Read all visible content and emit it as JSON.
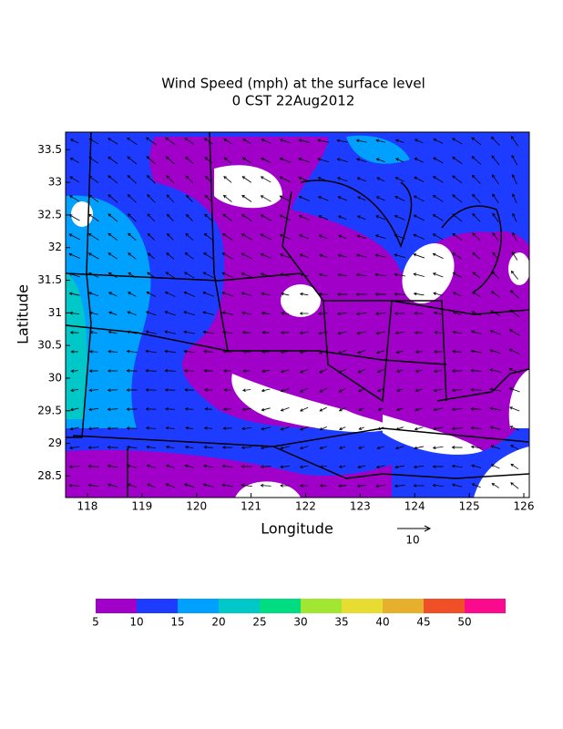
{
  "chart_data": {
    "type": "contour",
    "title": "Wind Speed (mph) at the surface level",
    "subtitle": "0 CST 22Aug2012",
    "x_label": "Longitude",
    "y_label": "Latitude",
    "xlim": [
      117.6,
      126.1
    ],
    "xticks": [
      118,
      119,
      120,
      121,
      122,
      123,
      124,
      125,
      126
    ],
    "ylim": [
      28.17,
      33.77
    ],
    "yticks": [
      28.5,
      29,
      29.5,
      30,
      30.5,
      31,
      31.5,
      32,
      32.5,
      33,
      33.5
    ],
    "colorbar": {
      "levels": [
        5,
        10,
        15,
        20,
        25,
        30,
        35,
        40,
        45,
        50
      ],
      "colors": [
        "#a000c8",
        "#1e3cff",
        "#00a0ff",
        "#00c8c8",
        "#00dc82",
        "#a0e632",
        "#e6dc32",
        "#e6af2d",
        "#f05028",
        "#fa0a8c"
      ]
    },
    "reference_vector": "10"
  }
}
